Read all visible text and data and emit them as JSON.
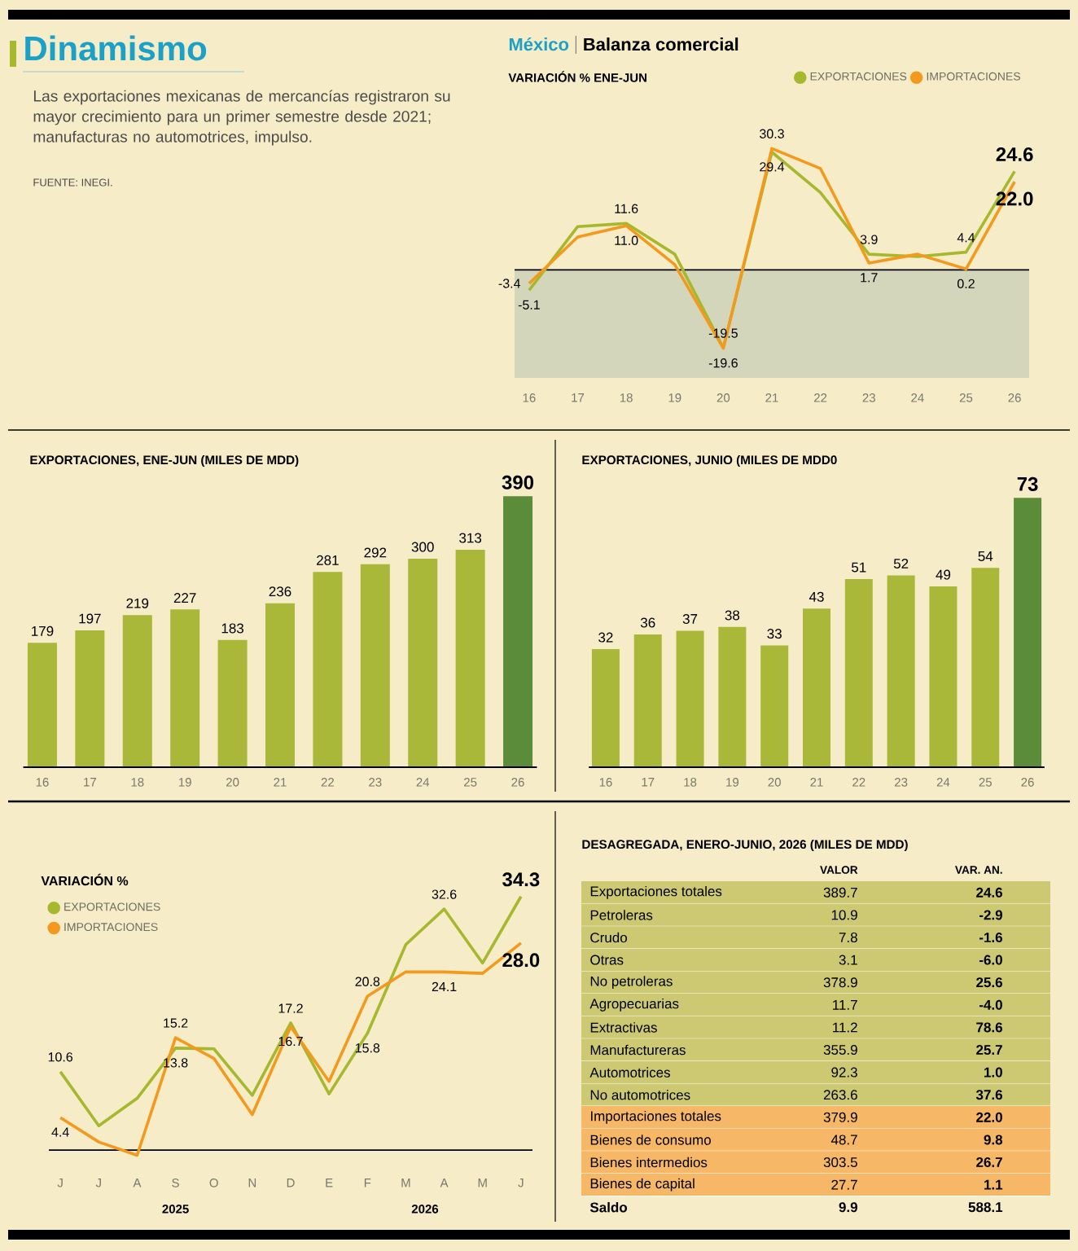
{
  "chart_data": [
    {
      "type": "other",
      "title": "Dinamismo",
      "subtitle": "Las exportaciones mexicanas de mercancías registraron su mayor crecimiento para un primer semestre desde 2021; manufacturas no automotrices, impulso.",
      "annotations": [
        "FUENTE:  INEGI."
      ]
    },
    {
      "type": "line",
      "title": "México",
      "subtitle": "Balanza comercial",
      "annotations": [
        "VARIACIÓN % ENE-JUN"
      ],
      "categories": [
        "16",
        "17",
        "18",
        "19",
        "20",
        "21",
        "22",
        "23",
        "24",
        "25",
        "26"
      ],
      "tick_labels": "x",
      "legend": "top right",
      "bands": [
        {
          "axis": "y",
          "from": -27,
          "to": 0,
          "color": "#d4d6bb"
        }
      ],
      "series": [
        {
          "name": "EXPORTACIONES",
          "color": "#a6b82e",
          "values": [
            -5.1,
            10.8,
            11.6,
            3.9,
            -19.5,
            29.4,
            19.3,
            3.9,
            3.3,
            4.4,
            24.6
          ],
          "value_labels": [
            "-5.1",
            null,
            "11.6",
            null,
            "-19.5",
            "29.4",
            null,
            "3.9",
            null,
            "4.4",
            "24.6"
          ]
        },
        {
          "name": "IMPORTACIONES",
          "color": "#f39a1e",
          "values": [
            -3.4,
            8.2,
            11.0,
            1.3,
            -19.6,
            30.3,
            25.3,
            1.7,
            3.9,
            0.2,
            22.0
          ],
          "value_labels": [
            "-3.4",
            null,
            "11.0",
            null,
            "-19.6",
            "30.3",
            null,
            "1.7",
            null,
            "0.2",
            "22.0"
          ]
        }
      ]
    },
    {
      "type": "bar",
      "title": "EXPORTACIONES, ENE-JUN (MILES DE MDD)",
      "categories": [
        "16",
        "17",
        "18",
        "19",
        "20",
        "21",
        "22",
        "23",
        "24",
        "25",
        "26"
      ],
      "tick_labels": "x",
      "data_labels": true,
      "values": [
        179,
        197,
        219,
        227,
        183,
        236,
        281,
        292,
        300,
        313,
        390
      ],
      "colors": [
        "#a9b838",
        "#a9b838",
        "#a9b838",
        "#a9b838",
        "#a9b838",
        "#a9b838",
        "#a9b838",
        "#a9b838",
        "#a9b838",
        "#a9b838",
        "#5b8c3a"
      ]
    },
    {
      "type": "bar",
      "title": "EXPORTACIONES, JUNIO (MILES DE MDD0",
      "categories": [
        "16",
        "17",
        "18",
        "19",
        "20",
        "21",
        "22",
        "23",
        "24",
        "25",
        "26"
      ],
      "tick_labels": "x",
      "data_labels": true,
      "values": [
        32,
        36,
        37,
        38,
        33,
        43,
        51,
        52,
        49,
        54,
        73
      ],
      "colors": [
        "#a9b838",
        "#a9b838",
        "#a9b838",
        "#a9b838",
        "#a9b838",
        "#a9b838",
        "#a9b838",
        "#a9b838",
        "#a9b838",
        "#a9b838",
        "#5b8c3a"
      ]
    },
    {
      "type": "line",
      "title": "VARIACIÓN %",
      "categories": [
        "J",
        "J",
        "A",
        "S",
        "O",
        "N",
        "D",
        "E",
        "F",
        "M",
        "A",
        "M",
        "J"
      ],
      "annotations": [
        "2025",
        "2026"
      ],
      "tick_labels": "x",
      "legend": "top left",
      "series": [
        {
          "name": "EXPORTACIONES",
          "color": "#a6b82e",
          "values": [
            10.6,
            3.3,
            7.0,
            13.8,
            13.7,
            7.4,
            17.2,
            7.6,
            15.8,
            27.8,
            32.6,
            25.3,
            34.3
          ],
          "value_labels": [
            "10.6",
            null,
            null,
            "13.8",
            null,
            null,
            "17.2",
            null,
            "15.8",
            null,
            "32.6",
            null,
            "34.3"
          ]
        },
        {
          "name": "IMPORTACIONES",
          "color": "#f39a1e",
          "values": [
            4.4,
            1.1,
            -0.7,
            15.2,
            12.4,
            4.8,
            16.7,
            9.3,
            20.8,
            24.1,
            24.1,
            23.9,
            28.0
          ],
          "value_labels": [
            "4.4",
            null,
            null,
            "15.2",
            null,
            null,
            "16.7",
            null,
            "20.8",
            null,
            "24.1",
            null,
            "28.0"
          ]
        }
      ]
    },
    {
      "type": "other",
      "title": "DESAGREGADA, ENERO-JUNIO, 2026 (MILES DE MDD)",
      "categories": [
        "VALOR",
        "VAR. AN."
      ],
      "y_categories": [
        "Exportaciones totales",
        "Petroleras",
        "Crudo",
        "Otras",
        "No petroleras",
        "Agropecuarias",
        "Extractivas",
        "Manufactureras",
        "Automotrices",
        "No automotrices",
        "Importaciones totales",
        "Bienes de consumo",
        "Bienes intermedios",
        "Bienes de capital",
        "Saldo"
      ],
      "cell_labels": [
        [
          "389.7",
          "24.6"
        ],
        [
          "10.9",
          "-2.9"
        ],
        [
          "7.8",
          "-1.6"
        ],
        [
          "3.1",
          "-6.0"
        ],
        [
          "378.9",
          "25.6"
        ],
        [
          "11.7",
          "-4.0"
        ],
        [
          "11.2",
          "78.6"
        ],
        [
          "355.9",
          "25.7"
        ],
        [
          "92.3",
          "1.0"
        ],
        [
          "263.6",
          "37.6"
        ],
        [
          "379.9",
          "22.0"
        ],
        [
          "48.7",
          "9.8"
        ],
        [
          "303.5",
          "26.7"
        ],
        [
          "27.7",
          "1.1"
        ],
        [
          "9.9",
          "588.1"
        ]
      ],
      "colors": [
        "#cdc872",
        "#cdc872",
        "#cdc872",
        "#cdc872",
        "#cdc872",
        "#cdc872",
        "#cdc872",
        "#cdc872",
        "#cdc872",
        "#cdc872",
        "#f6b866",
        "#f6b866",
        "#f6b866",
        "#f6b866",
        null
      ]
    }
  ]
}
